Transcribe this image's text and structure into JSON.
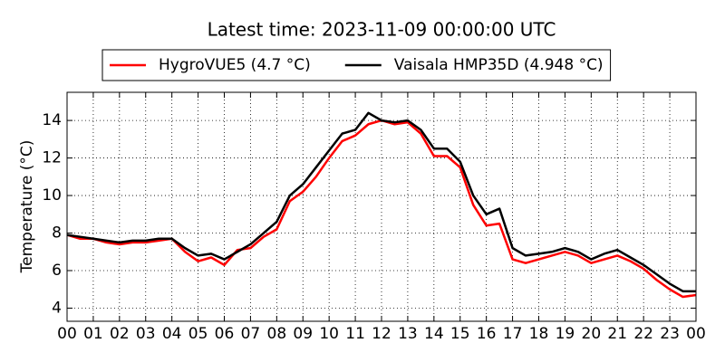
{
  "chart_data": {
    "type": "line",
    "title": "Latest time: 2023-11-09 00:00:00 UTC",
    "ylabel": "Temperature (°C)",
    "x": [
      0,
      0.5,
      1,
      1.5,
      2,
      2.5,
      3,
      3.5,
      4,
      4.5,
      5,
      5.5,
      6,
      6.5,
      7,
      7.5,
      8,
      8.5,
      9,
      9.5,
      10,
      10.5,
      11,
      11.5,
      12,
      12.5,
      13,
      13.5,
      14,
      14.5,
      15,
      15.5,
      16,
      16.5,
      17,
      17.5,
      18,
      18.5,
      19,
      19.5,
      20,
      20.5,
      21,
      21.5,
      22,
      22.5,
      23,
      23.5,
      24
    ],
    "series": [
      {
        "name": "HygroVUE5 (4.7 °C)",
        "color": "#ff0000",
        "values": [
          7.9,
          7.7,
          7.7,
          7.5,
          7.4,
          7.5,
          7.5,
          7.6,
          7.7,
          7.0,
          6.5,
          6.7,
          6.3,
          7.1,
          7.2,
          7.8,
          8.2,
          9.7,
          10.2,
          11.0,
          12.0,
          12.9,
          13.2,
          13.8,
          14.0,
          13.8,
          13.9,
          13.3,
          12.1,
          12.1,
          11.5,
          9.5,
          8.4,
          8.5,
          6.6,
          6.4,
          6.6,
          6.8,
          7.0,
          6.8,
          6.4,
          6.6,
          6.8,
          6.5,
          6.1,
          5.5,
          5.0,
          4.6,
          4.7
        ]
      },
      {
        "name": "Vaisala HMP35D (4.948 °C)",
        "color": "#000000",
        "values": [
          7.9,
          7.8,
          7.7,
          7.6,
          7.5,
          7.6,
          7.6,
          7.7,
          7.7,
          7.2,
          6.8,
          6.9,
          6.6,
          7.0,
          7.4,
          8.0,
          8.6,
          10.0,
          10.6,
          11.5,
          12.4,
          13.3,
          13.5,
          14.4,
          14.0,
          13.9,
          14.0,
          13.5,
          12.5,
          12.5,
          11.8,
          10.0,
          9.0,
          9.3,
          7.2,
          6.8,
          6.9,
          7.0,
          7.2,
          7.0,
          6.6,
          6.9,
          7.1,
          6.7,
          6.3,
          5.8,
          5.3,
          4.9,
          4.9
        ]
      }
    ],
    "xlim": [
      0,
      24
    ],
    "xticks": [
      {
        "value": 0,
        "label": "00"
      },
      {
        "value": 1,
        "label": "01"
      },
      {
        "value": 2,
        "label": "02"
      },
      {
        "value": 3,
        "label": "03"
      },
      {
        "value": 4,
        "label": "04"
      },
      {
        "value": 5,
        "label": "05"
      },
      {
        "value": 6,
        "label": "06"
      },
      {
        "value": 7,
        "label": "07"
      },
      {
        "value": 8,
        "label": "08"
      },
      {
        "value": 9,
        "label": "09"
      },
      {
        "value": 10,
        "label": "10"
      },
      {
        "value": 11,
        "label": "11"
      },
      {
        "value": 12,
        "label": "12"
      },
      {
        "value": 13,
        "label": "13"
      },
      {
        "value": 14,
        "label": "14"
      },
      {
        "value": 15,
        "label": "15"
      },
      {
        "value": 16,
        "label": "16"
      },
      {
        "value": 17,
        "label": "17"
      },
      {
        "value": 18,
        "label": "18"
      },
      {
        "value": 19,
        "label": "19"
      },
      {
        "value": 20,
        "label": "20"
      },
      {
        "value": 21,
        "label": "21"
      },
      {
        "value": 22,
        "label": "22"
      },
      {
        "value": 23,
        "label": "23"
      },
      {
        "value": 24,
        "label": "00"
      }
    ],
    "ylim": [
      3.3,
      15.5
    ],
    "yticks": [
      4,
      6,
      8,
      10,
      12,
      14
    ],
    "grid": true,
    "legend": "top"
  }
}
